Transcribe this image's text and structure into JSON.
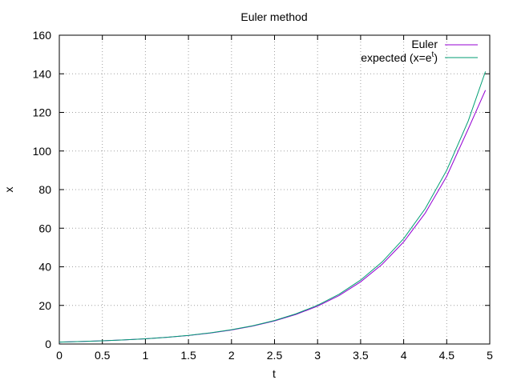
{
  "chart_data": {
    "type": "line",
    "title": "Euler method",
    "xlabel": "t",
    "ylabel": "x",
    "xlim": [
      0,
      5
    ],
    "ylim": [
      0,
      160
    ],
    "xticks": [
      "0",
      "0.5",
      "1",
      "1.5",
      "2",
      "2.5",
      "3",
      "3.5",
      "4",
      "4.5",
      "5"
    ],
    "yticks": [
      "0",
      "20",
      "40",
      "60",
      "80",
      "100",
      "120",
      "140",
      "160"
    ],
    "grid": true,
    "legend_position": "top-right",
    "series": [
      {
        "name": "Euler",
        "legend_label": "Euler",
        "color": "#9400d3",
        "x": [
          0,
          0.25,
          0.5,
          0.75,
          1,
          1.25,
          1.5,
          1.75,
          2,
          2.25,
          2.5,
          2.75,
          3,
          3.25,
          3.5,
          3.75,
          4,
          4.25,
          4.5,
          4.75,
          4.95
        ],
        "values": [
          1,
          1.28,
          1.64,
          2.1,
          2.69,
          3.45,
          4.42,
          5.67,
          7.27,
          9.33,
          11.96,
          15.34,
          19.6,
          25.1,
          32.2,
          41.3,
          52.9,
          67.8,
          86.9,
          111.4,
          131.5
        ]
      },
      {
        "name": "expected (x=e^t)",
        "legend_label": "expected (x=e",
        "legend_sup": "t",
        "legend_close": ")",
        "color": "#009e73",
        "x": [
          0,
          0.25,
          0.5,
          0.75,
          1,
          1.25,
          1.5,
          1.75,
          2,
          2.25,
          2.5,
          2.75,
          3,
          3.25,
          3.5,
          3.75,
          4,
          4.25,
          4.5,
          4.75,
          4.95
        ],
        "values": [
          1,
          1.28,
          1.65,
          2.12,
          2.72,
          3.49,
          4.48,
          5.75,
          7.39,
          9.49,
          12.18,
          15.64,
          20.09,
          25.79,
          33.12,
          42.52,
          54.6,
          70.11,
          90.02,
          115.58,
          141.2
        ]
      }
    ]
  }
}
